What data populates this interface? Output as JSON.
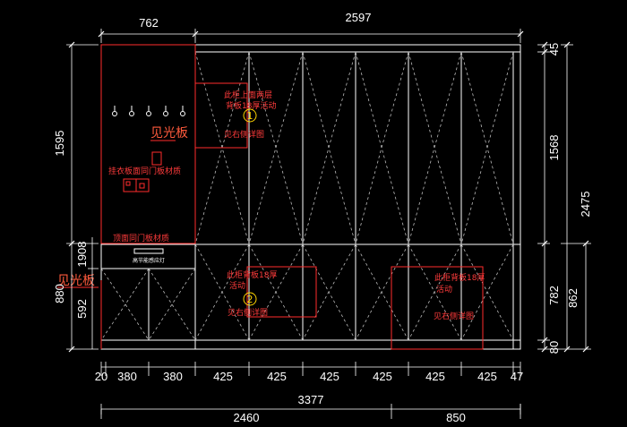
{
  "dimensions": {
    "top_left": "762",
    "top_right": "2597",
    "left_upper": "1595",
    "left_mid": "1908",
    "left_lower": "592",
    "left_total_lower": "880",
    "right_top": "45",
    "right_mid": "1568",
    "right_total": "2475",
    "right_lower": "782",
    "right_lower_total": "862",
    "right_bottom": "80",
    "bottom_segments": [
      "20",
      "380",
      "380",
      "425",
      "425",
      "425",
      "425",
      "425",
      "425",
      "47"
    ],
    "bottom_total": "3377",
    "bottom_left": "2460",
    "bottom_right": "850"
  },
  "notes": {
    "upper_cabinet_line1": "此柜上面两层",
    "upper_cabinet_line2": "背板18厚活动",
    "upper_cabinet_ref": "见右侧详图",
    "upper_circle": "1",
    "coat_panel": "挂衣板面同门板材质",
    "top_panel": "顶面同门板材质",
    "light_panel_upper": "见光板",
    "light_panel_lower": "见光板",
    "drawer_label": "高节能感应灯",
    "mid_back_line1": "此柜背板18厚",
    "mid_back_line2": "活动",
    "mid_back_ref": "见右侧详图",
    "mid_circle": "2",
    "right_back_line1": "此柜背板18厚",
    "right_back_line2": "活动",
    "right_back_ref": "见右侧详图"
  },
  "colors": {
    "background": "#000000",
    "line": "#ffffff",
    "annotation": "#ff3b3b",
    "circle": "#ffd400"
  }
}
